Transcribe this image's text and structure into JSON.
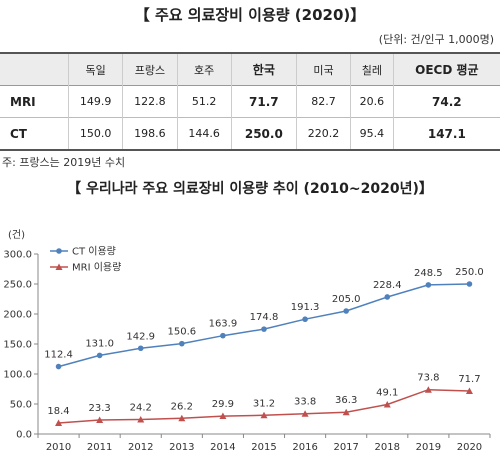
{
  "table": {
    "title": "【 주요 의료장비 이용량 (2020)】",
    "unit": "(단위: 건/인구 1,000명)",
    "columns": [
      "독일",
      "프랑스",
      "호주",
      "한국",
      "미국",
      "칠레",
      "OECD 평균"
    ],
    "rows": [
      {
        "label": "MRI",
        "values": [
          "149.9",
          "122.8",
          "51.2",
          "71.7",
          "82.7",
          "20.6",
          "74.2"
        ]
      },
      {
        "label": "CT",
        "values": [
          "150.0",
          "198.6",
          "144.6",
          "250.0",
          "220.2",
          "95.4",
          "147.1"
        ]
      }
    ],
    "note": "주: 프랑스는 2019년 수치"
  },
  "chart_data": {
    "type": "line",
    "title": "【 우리나라 주요 의료장비 이용량 추이 (2010~2020년)】",
    "ylabel": "(건)",
    "ylim": [
      0,
      300
    ],
    "yticks": [
      "0.0",
      "50.0",
      "100.0",
      "150.0",
      "200.0",
      "250.0",
      "300.0"
    ],
    "x": [
      "2010",
      "2011",
      "2012",
      "2013",
      "2014",
      "2015",
      "2016",
      "2017",
      "2018",
      "2019",
      "2020"
    ],
    "grid": false,
    "legend": "top-left",
    "series": [
      {
        "name": "CT 이용량",
        "color": "#4f81bd",
        "marker": "circle",
        "values": [
          112.4,
          131.0,
          142.9,
          150.6,
          163.9,
          174.8,
          191.3,
          205.0,
          228.4,
          248.5,
          250.0
        ]
      },
      {
        "name": "MRI 이용량",
        "color": "#c0504d",
        "marker": "triangle",
        "values": [
          18.4,
          23.3,
          24.2,
          26.2,
          29.9,
          31.2,
          33.8,
          36.3,
          49.1,
          73.8,
          71.7
        ]
      }
    ]
  }
}
